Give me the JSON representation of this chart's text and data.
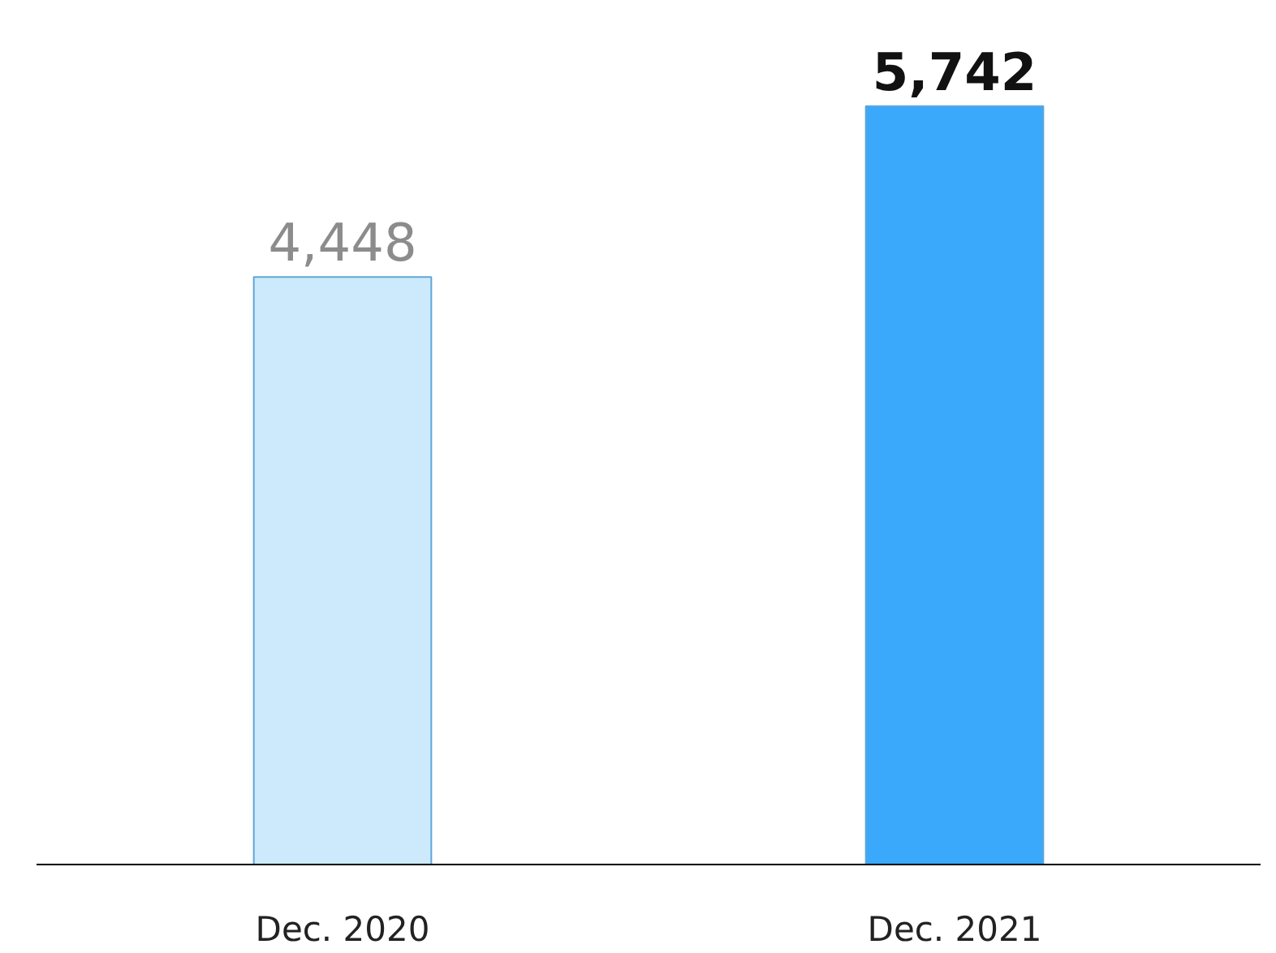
{
  "chart_data": {
    "type": "bar",
    "categories": [
      "Dec. 2020",
      "Dec. 2021"
    ],
    "values": [
      4448,
      5742
    ],
    "colors": [
      "#cdeafc",
      "#3aa8fb"
    ],
    "value_labels": [
      "4,448",
      "5,742"
    ],
    "tick_labels": "x",
    "grid": false
  }
}
